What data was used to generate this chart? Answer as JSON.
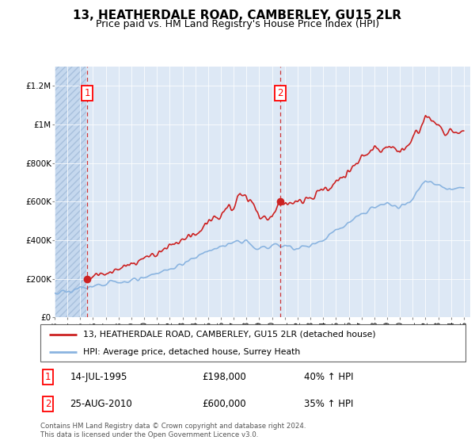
{
  "title": "13, HEATHERDALE ROAD, CAMBERLEY, GU15 2LR",
  "subtitle": "Price paid vs. HM Land Registry's House Price Index (HPI)",
  "ylim": [
    0,
    1300000
  ],
  "xlim_start": 1993.0,
  "xlim_end": 2025.5,
  "yticks": [
    0,
    200000,
    400000,
    600000,
    800000,
    1000000,
    1200000
  ],
  "ytick_labels": [
    "£0",
    "£200K",
    "£400K",
    "£600K",
    "£800K",
    "£1M",
    "£1.2M"
  ],
  "xtick_years": [
    1993,
    1994,
    1995,
    1996,
    1997,
    1998,
    1999,
    2000,
    2001,
    2002,
    2003,
    2004,
    2005,
    2006,
    2007,
    2008,
    2009,
    2010,
    2011,
    2012,
    2013,
    2014,
    2015,
    2016,
    2017,
    2018,
    2019,
    2020,
    2021,
    2022,
    2023,
    2024,
    2025
  ],
  "background_color": "#ffffff",
  "plot_bg_color": "#dde8f5",
  "hatch_left_end": 1995.5,
  "hpi_line_color": "#8ab4e0",
  "price_line_color": "#cc2222",
  "sale1_x": 1995.54,
  "sale1_y": 198000,
  "sale1_label": "1",
  "sale2_x": 2010.65,
  "sale2_y": 600000,
  "sale2_label": "2",
  "legend_line1": "13, HEATHERDALE ROAD, CAMBERLEY, GU15 2LR (detached house)",
  "legend_line2": "HPI: Average price, detached house, Surrey Heath",
  "annotation1_date": "14-JUL-1995",
  "annotation1_price": "£198,000",
  "annotation1_hpi": "40% ↑ HPI",
  "annotation2_date": "25-AUG-2010",
  "annotation2_price": "£600,000",
  "annotation2_hpi": "35% ↑ HPI",
  "footer": "Contains HM Land Registry data © Crown copyright and database right 2024.\nThis data is licensed under the Open Government Licence v3.0.",
  "title_fontsize": 11,
  "subtitle_fontsize": 9,
  "tick_fontsize": 7.5,
  "hpi_anchors_x": [
    1993,
    1994,
    1995,
    1996,
    1997,
    1998,
    1999,
    2000,
    2001,
    2002,
    2003,
    2004,
    2005,
    2006,
    2007,
    2008,
    2009,
    2010,
    2011,
    2012,
    2013,
    2014,
    2015,
    2016,
    2017,
    2018,
    2019,
    2020,
    2021,
    2022,
    2023,
    2024,
    2025
  ],
  "hpi_anchors_y": [
    130000,
    138000,
    148000,
    162000,
    173000,
    183000,
    195000,
    212000,
    228000,
    248000,
    278000,
    310000,
    345000,
    370000,
    390000,
    395000,
    355000,
    375000,
    370000,
    355000,
    375000,
    405000,
    450000,
    490000,
    540000,
    570000,
    590000,
    570000,
    620000,
    710000,
    690000,
    660000,
    670000
  ],
  "price_anchors_x": [
    1995.54,
    1996,
    1997,
    1998,
    1999,
    2000,
    2001,
    2002,
    2003,
    2004,
    2005,
    2006,
    2007,
    2007.5,
    2008,
    2008.5,
    2009,
    2009.5,
    2010,
    2010.65,
    2011,
    2012,
    2013,
    2014,
    2015,
    2016,
    2017,
    2018,
    2019,
    2020,
    2021,
    2021.5,
    2022,
    2022.5,
    2023,
    2023.5,
    2024,
    2025
  ],
  "price_anchors_y": [
    198000,
    210000,
    230000,
    255000,
    275000,
    305000,
    330000,
    360000,
    395000,
    430000,
    490000,
    530000,
    580000,
    650000,
    620000,
    590000,
    530000,
    510000,
    520000,
    600000,
    580000,
    590000,
    620000,
    660000,
    700000,
    750000,
    830000,
    870000,
    880000,
    870000,
    920000,
    970000,
    1050000,
    1010000,
    1000000,
    960000,
    970000,
    960000
  ]
}
